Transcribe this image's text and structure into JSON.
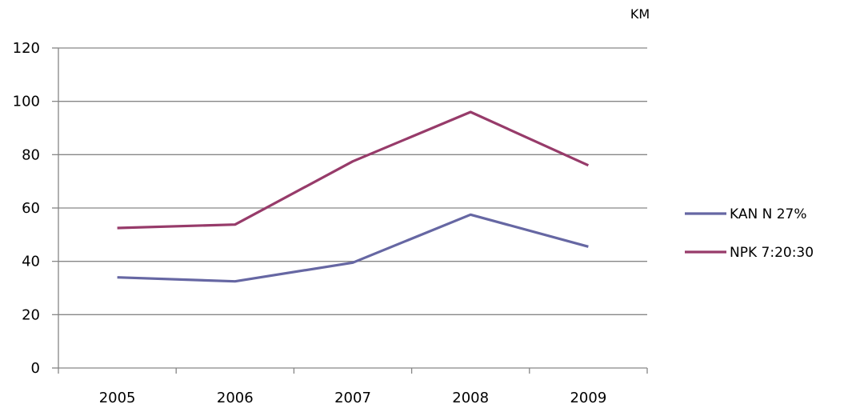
{
  "chart_data": {
    "type": "line",
    "categories": [
      "2005",
      "2006",
      "2007",
      "2008",
      "2009"
    ],
    "unit_label": "KM",
    "ylim": [
      0,
      120
    ],
    "yticks": [
      0,
      20,
      40,
      60,
      80,
      100,
      120
    ],
    "grid": true,
    "legend_position": "right",
    "series": [
      {
        "name": "KAN N 27%",
        "values": [
          34,
          32.5,
          39.5,
          57.5,
          45.5
        ],
        "color": "#6667a3"
      },
      {
        "name": "NPK 7:20:30",
        "values": [
          52.5,
          53.8,
          77.5,
          96,
          76
        ],
        "color": "#973b6a"
      }
    ]
  }
}
